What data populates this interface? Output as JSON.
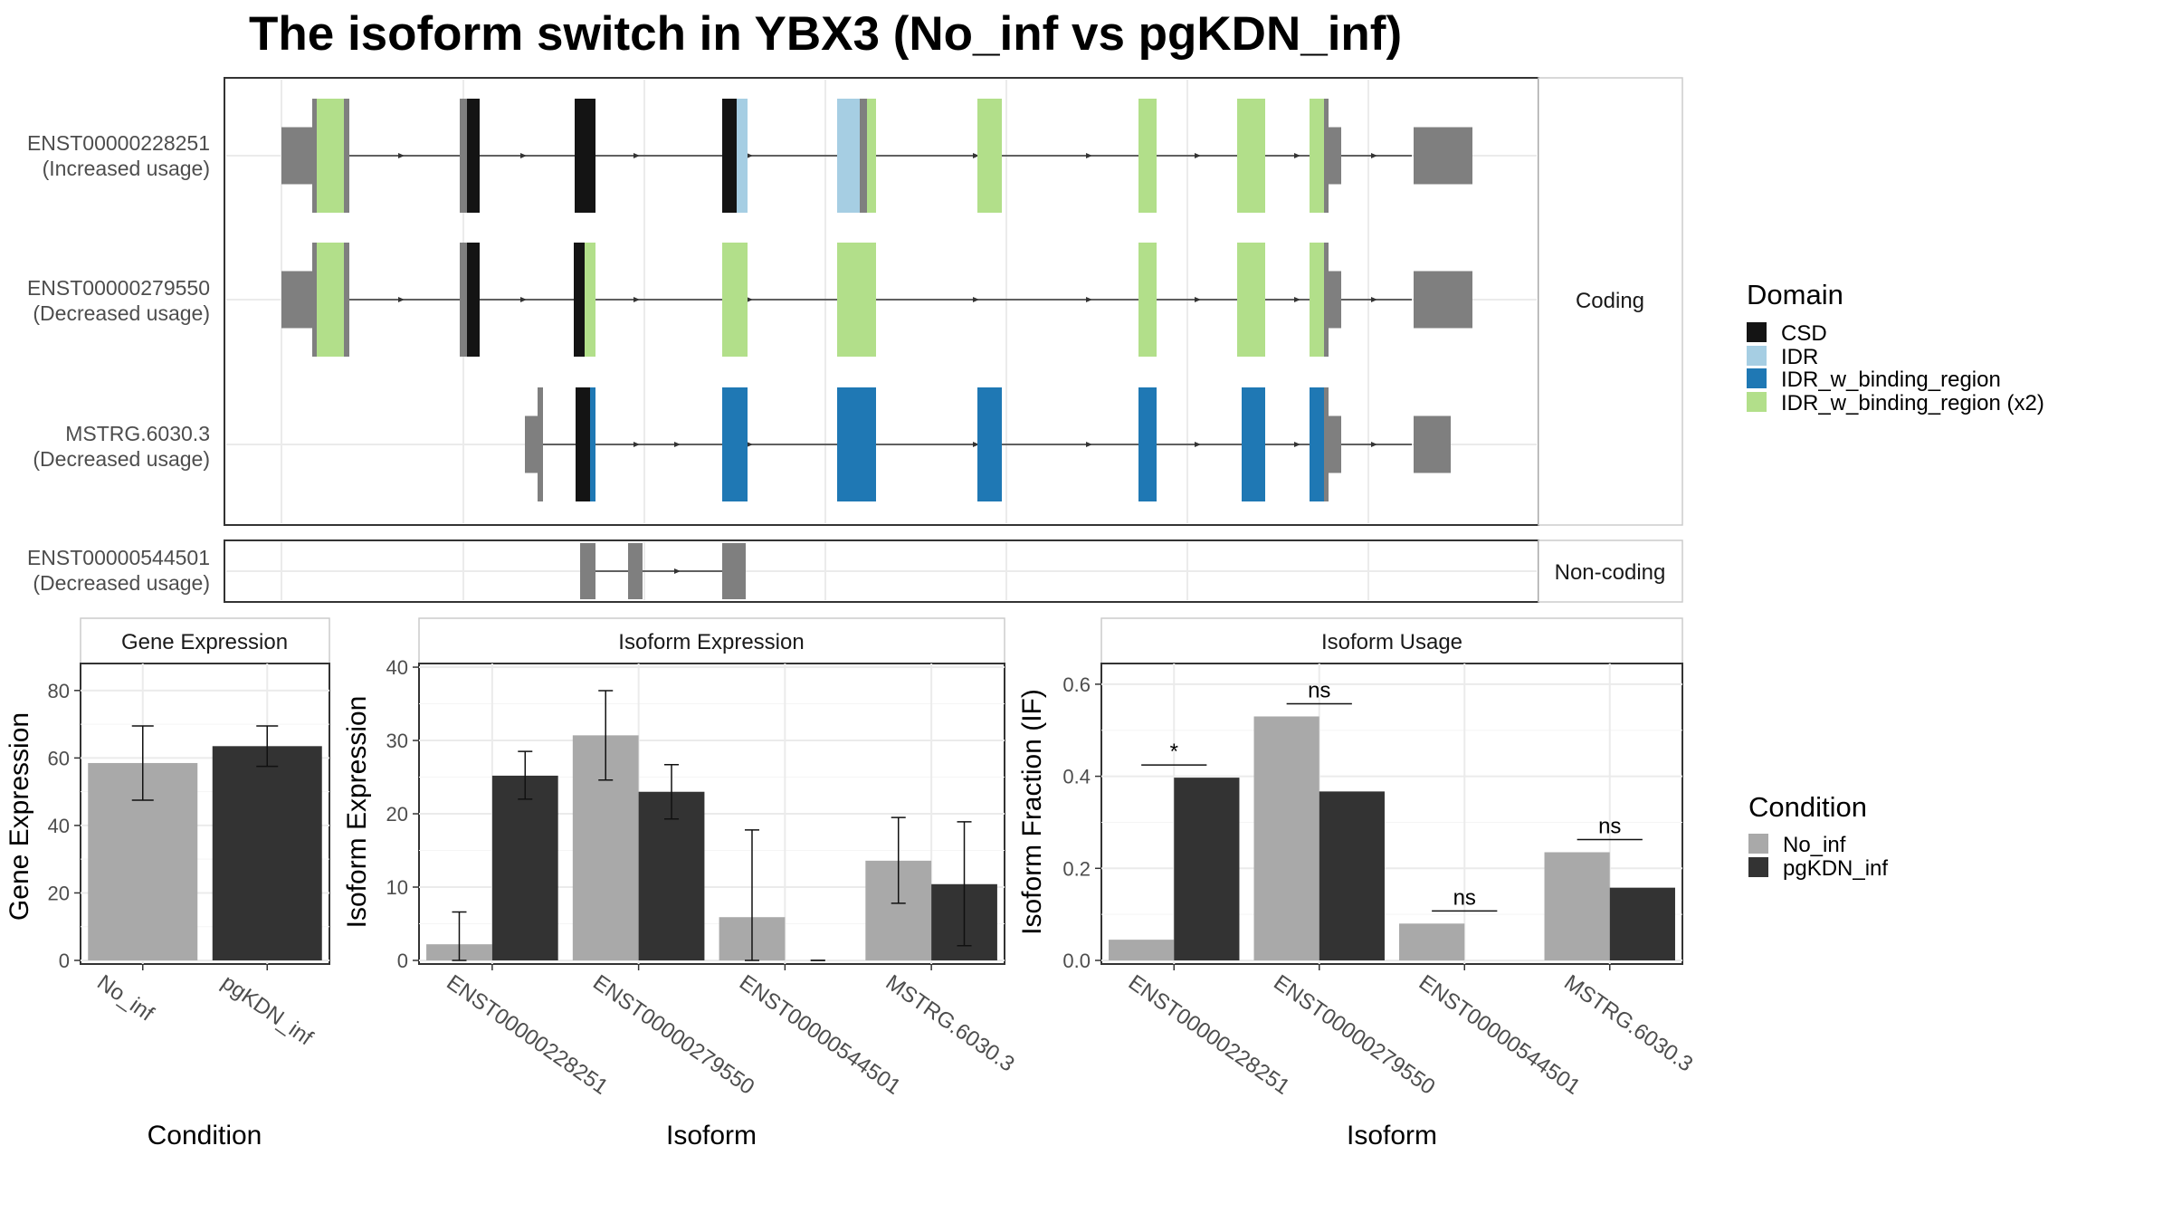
{
  "title": "The isoform switch in YBX3 (No_inf vs pgKDN_inf)",
  "structure": {
    "coding_label": "Coding",
    "noncoding_label": "Non-coding",
    "transcripts": [
      {
        "id": "ENST00000228251",
        "status": "(Increased usage)",
        "panel": "coding"
      },
      {
        "id": "ENST00000279550",
        "status": "(Decreased usage)",
        "panel": "coding"
      },
      {
        "id": "MSTRG.6030.3",
        "status": "(Decreased usage)",
        "panel": "coding"
      },
      {
        "id": "ENST00000544501",
        "status": "(Decreased usage)",
        "panel": "noncoding"
      }
    ]
  },
  "domain_legend": {
    "title": "Domain",
    "items": [
      {
        "label": "CSD",
        "color": "#141414"
      },
      {
        "label": "IDR",
        "color": "#a6cee3"
      },
      {
        "label": "IDR_w_binding_region",
        "color": "#1f78b4"
      },
      {
        "label": "IDR_w_binding_region (x2)",
        "color": "#b2df8a"
      }
    ]
  },
  "condition_legend": {
    "title": "Condition",
    "items": [
      {
        "label": "No_inf",
        "color": "#a9a9a9"
      },
      {
        "label": "pgKDN_inf",
        "color": "#333333"
      }
    ]
  },
  "chart_data": [
    {
      "type": "bar",
      "title": "Gene Expression",
      "xlabel": "Condition",
      "ylabel": "Gene Expression",
      "ylim": [
        0,
        88
      ],
      "yticks": [
        0,
        20,
        40,
        60,
        80
      ],
      "categories": [
        "No_inf",
        "pgKDN_inf"
      ],
      "values": [
        58.5,
        63.5
      ],
      "error": [
        [
          47.5,
          69.5
        ],
        [
          57.5,
          69.5
        ]
      ],
      "colors": [
        "#a9a9a9",
        "#333333"
      ]
    },
    {
      "type": "bar",
      "title": "Isoform Expression",
      "xlabel": "Isoform",
      "ylabel": "Isoform Expression",
      "ylim": [
        0,
        40.5
      ],
      "yticks": [
        0,
        10,
        20,
        30,
        40
      ],
      "categories": [
        "ENST00000228251",
        "ENST00000279550",
        "ENST00000544501",
        "MSTRG.6030.3"
      ],
      "series": [
        {
          "name": "No_inf",
          "values": [
            2.2,
            30.7,
            5.9,
            13.6
          ],
          "error": [
            [
              0,
              6.6
            ],
            [
              24.6,
              36.8
            ],
            [
              0,
              17.8
            ],
            [
              7.8,
              19.5
            ]
          ]
        },
        {
          "name": "pgKDN_inf",
          "values": [
            25.2,
            23.0,
            0,
            10.4
          ],
          "error": [
            [
              22,
              28.5
            ],
            [
              19.3,
              26.7
            ],
            [
              0,
              0
            ],
            [
              2,
              18.9
            ]
          ]
        }
      ]
    },
    {
      "type": "bar",
      "title": "Isoform Usage",
      "xlabel": "Isoform",
      "ylabel": "Isoform Fraction (IF)",
      "ylim": [
        0,
        0.645
      ],
      "yticks": [
        0.0,
        0.2,
        0.4,
        0.6
      ],
      "categories": [
        "ENST00000228251",
        "ENST00000279550",
        "ENST00000544501",
        "MSTRG.6030.3"
      ],
      "series": [
        {
          "name": "No_inf",
          "values": [
            0.045,
            0.53,
            0.08,
            0.235
          ]
        },
        {
          "name": "pgKDN_inf",
          "values": [
            0.397,
            0.367,
            0.0,
            0.158
          ]
        }
      ],
      "significance": [
        "*",
        "ns",
        "ns",
        "ns"
      ]
    }
  ]
}
